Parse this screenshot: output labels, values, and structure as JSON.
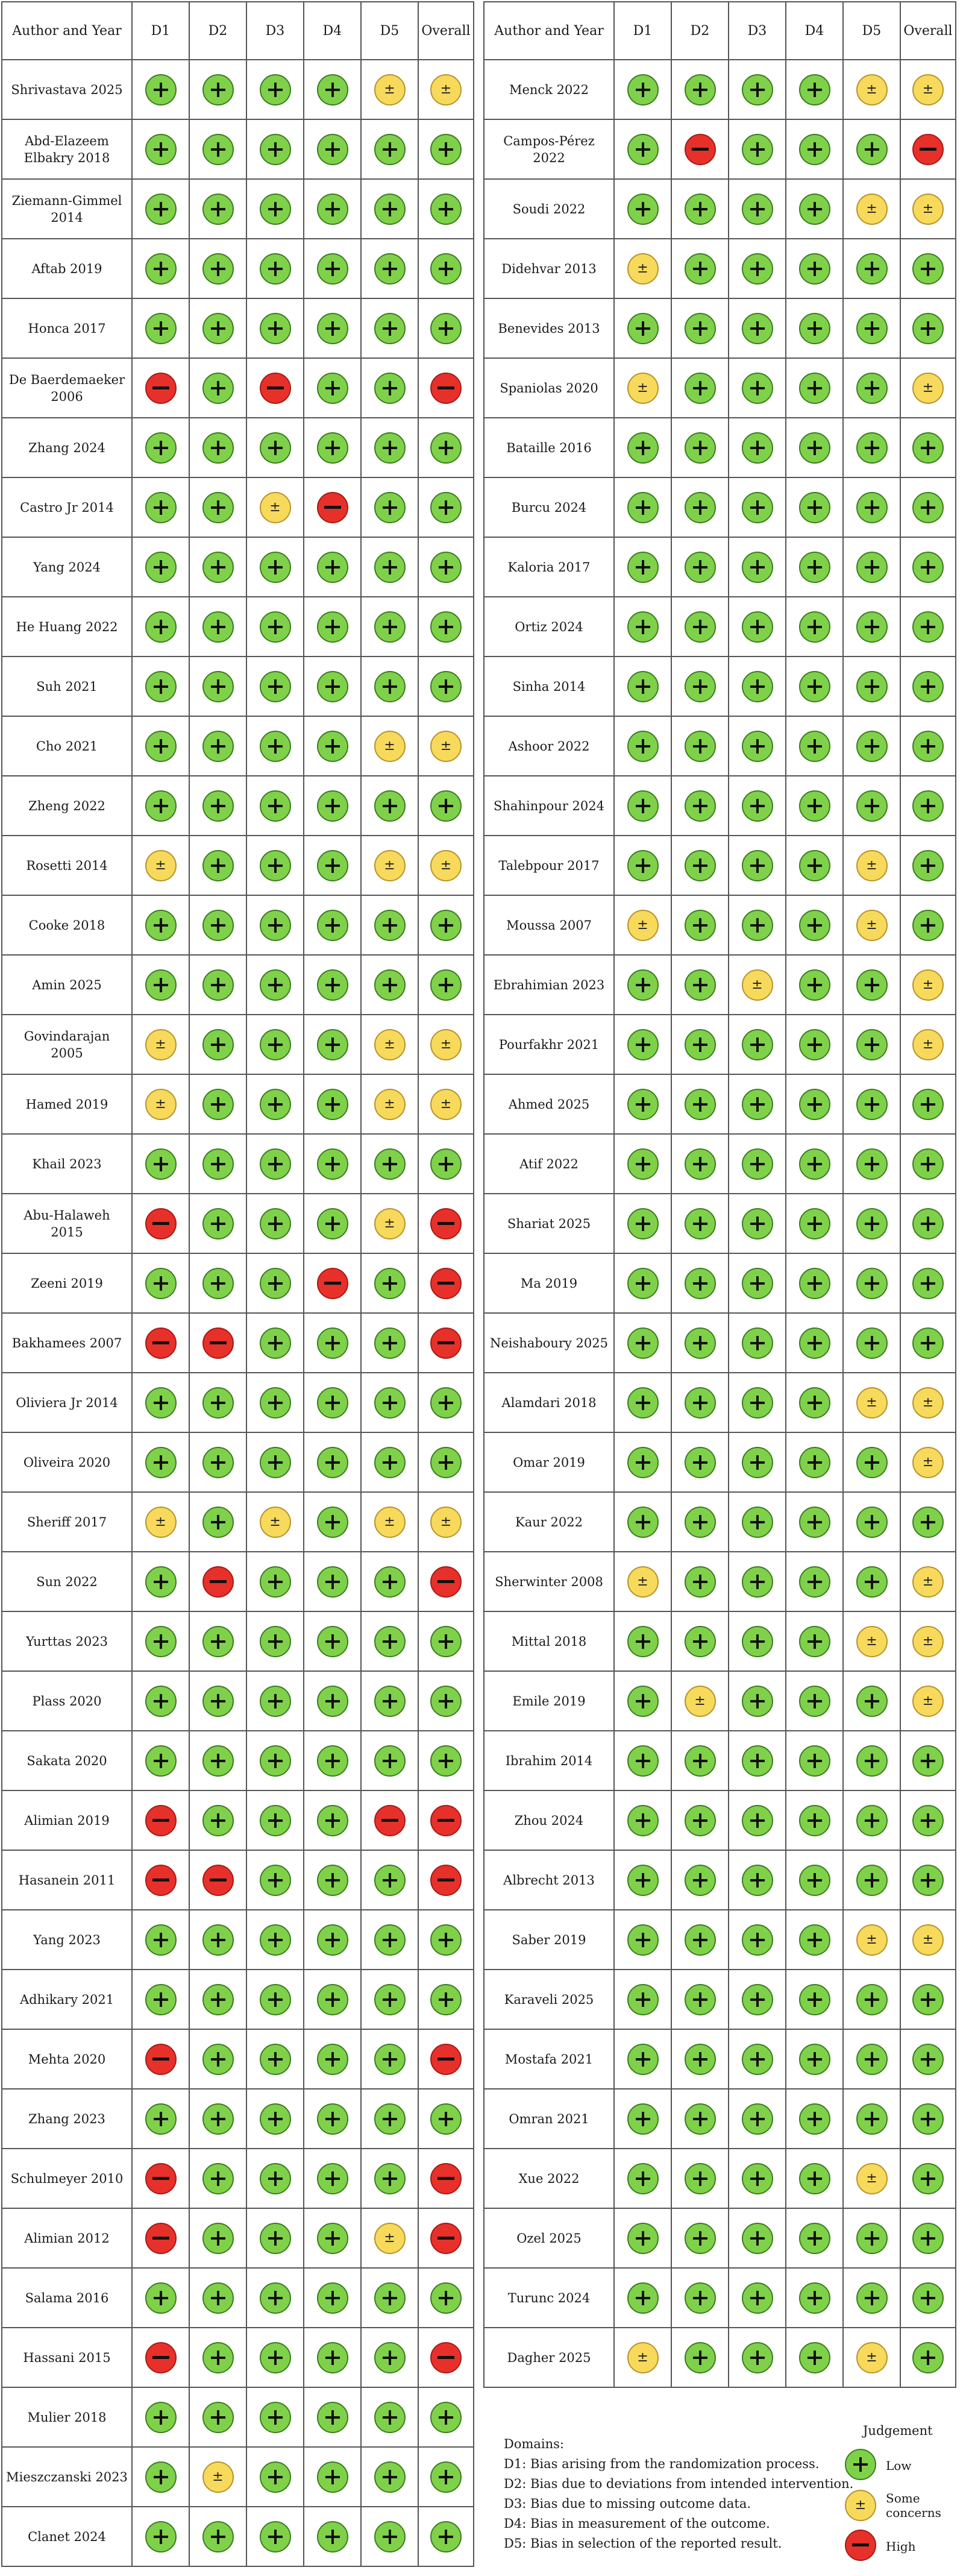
{
  "columns_header": {
    "name": "Author and Year",
    "d1": "D1",
    "d2": "D2",
    "d3": "D3",
    "d4": "D4",
    "d5": "D5",
    "overall": "Overall"
  },
  "left_table": [
    {
      "name": "Shrivastava 2025",
      "j": [
        "low",
        "low",
        "low",
        "low",
        "some",
        "some"
      ]
    },
    {
      "name": "Abd-Elazeem Elbakry 2018",
      "j": [
        "low",
        "low",
        "low",
        "low",
        "low",
        "low"
      ]
    },
    {
      "name": "Ziemann-Gimmel 2014",
      "j": [
        "low",
        "low",
        "low",
        "low",
        "low",
        "low"
      ]
    },
    {
      "name": "Aftab 2019",
      "j": [
        "low",
        "low",
        "low",
        "low",
        "low",
        "low"
      ]
    },
    {
      "name": "Honca 2017",
      "j": [
        "low",
        "low",
        "low",
        "low",
        "low",
        "low"
      ]
    },
    {
      "name": "De Baerdemaeker 2006",
      "j": [
        "high",
        "low",
        "high",
        "low",
        "low",
        "high"
      ]
    },
    {
      "name": "Zhang 2024",
      "j": [
        "low",
        "low",
        "low",
        "low",
        "low",
        "low"
      ]
    },
    {
      "name": "Castro Jr 2014",
      "j": [
        "low",
        "low",
        "some",
        "high",
        "low",
        "low"
      ]
    },
    {
      "name": "Yang 2024",
      "j": [
        "low",
        "low",
        "low",
        "low",
        "low",
        "low"
      ]
    },
    {
      "name": "He Huang 2022",
      "j": [
        "low",
        "low",
        "low",
        "low",
        "low",
        "low"
      ]
    },
    {
      "name": "Suh 2021",
      "j": [
        "low",
        "low",
        "low",
        "low",
        "low",
        "low"
      ]
    },
    {
      "name": "Cho 2021",
      "j": [
        "low",
        "low",
        "low",
        "low",
        "some",
        "some"
      ]
    },
    {
      "name": "Zheng 2022",
      "j": [
        "low",
        "low",
        "low",
        "low",
        "low",
        "low"
      ]
    },
    {
      "name": "Rosetti 2014",
      "j": [
        "some",
        "low",
        "low",
        "low",
        "some",
        "some"
      ]
    },
    {
      "name": "Cooke 2018",
      "j": [
        "low",
        "low",
        "low",
        "low",
        "low",
        "low"
      ]
    },
    {
      "name": "Amin 2025",
      "j": [
        "low",
        "low",
        "low",
        "low",
        "low",
        "low"
      ]
    },
    {
      "name": "Govindarajan 2005",
      "j": [
        "some",
        "low",
        "low",
        "low",
        "some",
        "some"
      ]
    },
    {
      "name": "Hamed 2019",
      "j": [
        "some",
        "low",
        "low",
        "low",
        "some",
        "some"
      ]
    },
    {
      "name": "Khail 2023",
      "j": [
        "low",
        "low",
        "low",
        "low",
        "low",
        "low"
      ]
    },
    {
      "name": "Abu-Halaweh 2015",
      "j": [
        "high",
        "low",
        "low",
        "low",
        "some",
        "high"
      ]
    },
    {
      "name": "Zeeni 2019",
      "j": [
        "low",
        "low",
        "low",
        "high",
        "low",
        "high"
      ]
    },
    {
      "name": "Bakhamees 2007",
      "j": [
        "high",
        "high",
        "low",
        "low",
        "low",
        "high"
      ]
    },
    {
      "name": "Oliviera Jr 2014",
      "j": [
        "low",
        "low",
        "low",
        "low",
        "low",
        "low"
      ]
    },
    {
      "name": "Oliveira 2020",
      "j": [
        "low",
        "low",
        "low",
        "low",
        "low",
        "low"
      ]
    },
    {
      "name": "Sheriff 2017",
      "j": [
        "some",
        "low",
        "some",
        "low",
        "some",
        "some"
      ]
    },
    {
      "name": "Sun 2022",
      "j": [
        "low",
        "high",
        "low",
        "low",
        "low",
        "high"
      ]
    },
    {
      "name": "Yurttas 2023",
      "j": [
        "low",
        "low",
        "low",
        "low",
        "low",
        "low"
      ]
    },
    {
      "name": "Plass 2020",
      "j": [
        "low",
        "low",
        "low",
        "low",
        "low",
        "low"
      ]
    },
    {
      "name": "Sakata 2020",
      "j": [
        "low",
        "low",
        "low",
        "low",
        "low",
        "low"
      ]
    },
    {
      "name": "Alimian 2019",
      "j": [
        "high",
        "low",
        "low",
        "low",
        "high",
        "high"
      ]
    },
    {
      "name": "Hasanein 2011",
      "j": [
        "high",
        "high",
        "low",
        "low",
        "low",
        "high"
      ]
    },
    {
      "name": "Yang 2023",
      "j": [
        "low",
        "low",
        "low",
        "low",
        "low",
        "low"
      ]
    },
    {
      "name": "Adhikary 2021",
      "j": [
        "low",
        "low",
        "low",
        "low",
        "low",
        "low"
      ]
    },
    {
      "name": "Mehta 2020",
      "j": [
        "high",
        "low",
        "low",
        "low",
        "low",
        "high"
      ]
    },
    {
      "name": "Zhang 2023",
      "j": [
        "low",
        "low",
        "low",
        "low",
        "low",
        "low"
      ]
    },
    {
      "name": "Schulmeyer 2010",
      "j": [
        "high",
        "low",
        "low",
        "low",
        "low",
        "high"
      ]
    },
    {
      "name": "Alimian 2012",
      "j": [
        "high",
        "low",
        "low",
        "low",
        "some",
        "high"
      ]
    },
    {
      "name": "Salama 2016",
      "j": [
        "low",
        "low",
        "low",
        "low",
        "low",
        "low"
      ]
    },
    {
      "name": "Hassani 2015",
      "j": [
        "high",
        "low",
        "low",
        "low",
        "low",
        "high"
      ]
    },
    {
      "name": "Mulier 2018",
      "j": [
        "low",
        "low",
        "low",
        "low",
        "low",
        "low"
      ]
    },
    {
      "name": "Mieszczanski 2023",
      "j": [
        "low",
        "some",
        "low",
        "low",
        "low",
        "low"
      ]
    },
    {
      "name": "Clanet 2024",
      "j": [
        "low",
        "low",
        "low",
        "low",
        "low",
        "low"
      ]
    }
  ],
  "right_table": [
    {
      "name": "Menck 2022",
      "j": [
        "low",
        "low",
        "low",
        "low",
        "some",
        "some"
      ]
    },
    {
      "name": "Campos-Pérez 2022",
      "j": [
        "low",
        "high",
        "low",
        "low",
        "low",
        "high"
      ]
    },
    {
      "name": "Soudi 2022",
      "j": [
        "low",
        "low",
        "low",
        "low",
        "some",
        "some"
      ]
    },
    {
      "name": "Didehvar 2013",
      "j": [
        "some",
        "low",
        "low",
        "low",
        "low",
        "low"
      ]
    },
    {
      "name": "Benevides 2013",
      "j": [
        "low",
        "low",
        "low",
        "low",
        "low",
        "low"
      ]
    },
    {
      "name": "Spaniolas 2020",
      "j": [
        "some",
        "low",
        "low",
        "low",
        "low",
        "some"
      ]
    },
    {
      "name": "Bataille 2016",
      "j": [
        "low",
        "low",
        "low",
        "low",
        "low",
        "low"
      ]
    },
    {
      "name": "Burcu 2024",
      "j": [
        "low",
        "low",
        "low",
        "low",
        "low",
        "low"
      ]
    },
    {
      "name": "Kaloria 2017",
      "j": [
        "low",
        "low",
        "low",
        "low",
        "low",
        "low"
      ]
    },
    {
      "name": "Ortiz 2024",
      "j": [
        "low",
        "low",
        "low",
        "low",
        "low",
        "low"
      ]
    },
    {
      "name": "Sinha 2014",
      "j": [
        "low",
        "low",
        "low",
        "low",
        "low",
        "low"
      ]
    },
    {
      "name": "Ashoor 2022",
      "j": [
        "low",
        "low",
        "low",
        "low",
        "low",
        "low"
      ]
    },
    {
      "name": "Shahinpour 2024",
      "j": [
        "low",
        "low",
        "low",
        "low",
        "low",
        "low"
      ]
    },
    {
      "name": "Talebpour 2017",
      "j": [
        "low",
        "low",
        "low",
        "low",
        "some",
        "low"
      ]
    },
    {
      "name": "Moussa 2007",
      "j": [
        "some",
        "low",
        "low",
        "low",
        "some",
        "low"
      ]
    },
    {
      "name": "Ebrahimian 2023",
      "j": [
        "low",
        "low",
        "some",
        "low",
        "low",
        "some"
      ]
    },
    {
      "name": "Pourfakhr 2021",
      "j": [
        "low",
        "low",
        "low",
        "low",
        "low",
        "some"
      ]
    },
    {
      "name": "Ahmed 2025",
      "j": [
        "low",
        "low",
        "low",
        "low",
        "low",
        "low"
      ]
    },
    {
      "name": "Atif 2022",
      "j": [
        "low",
        "low",
        "low",
        "low",
        "low",
        "low"
      ]
    },
    {
      "name": "Shariat 2025",
      "j": [
        "low",
        "low",
        "low",
        "low",
        "low",
        "low"
      ]
    },
    {
      "name": "Ma 2019",
      "j": [
        "low",
        "low",
        "low",
        "low",
        "low",
        "low"
      ]
    },
    {
      "name": "Neishaboury 2025",
      "j": [
        "low",
        "low",
        "low",
        "low",
        "low",
        "low"
      ]
    },
    {
      "name": "Alamdari 2018",
      "j": [
        "low",
        "low",
        "low",
        "low",
        "some",
        "some"
      ]
    },
    {
      "name": "Omar 2019",
      "j": [
        "low",
        "low",
        "low",
        "low",
        "low",
        "some"
      ]
    },
    {
      "name": "Kaur 2022",
      "j": [
        "low",
        "low",
        "low",
        "low",
        "low",
        "low"
      ]
    },
    {
      "name": "Sherwinter  2008",
      "j": [
        "some",
        "low",
        "low",
        "low",
        "low",
        "some"
      ]
    },
    {
      "name": "Mittal 2018",
      "j": [
        "low",
        "low",
        "low",
        "low",
        "some",
        "some"
      ]
    },
    {
      "name": "Emile 2019",
      "j": [
        "low",
        "some",
        "low",
        "low",
        "low",
        "some"
      ]
    },
    {
      "name": "Ibrahim 2014",
      "j": [
        "low",
        "low",
        "low",
        "low",
        "low",
        "low"
      ]
    },
    {
      "name": "Zhou 2024",
      "j": [
        "low",
        "low",
        "low",
        "low",
        "low",
        "low"
      ]
    },
    {
      "name": "Albrecht 2013",
      "j": [
        "low",
        "low",
        "low",
        "low",
        "low",
        "low"
      ]
    },
    {
      "name": "Saber 2019",
      "j": [
        "low",
        "low",
        "low",
        "low",
        "some",
        "some"
      ]
    },
    {
      "name": "Karaveli 2025",
      "j": [
        "low",
        "low",
        "low",
        "low",
        "low",
        "low"
      ]
    },
    {
      "name": "Mostafa 2021",
      "j": [
        "low",
        "low",
        "low",
        "low",
        "low",
        "low"
      ]
    },
    {
      "name": "Omran 2021",
      "j": [
        "low",
        "low",
        "low",
        "low",
        "low",
        "low"
      ]
    },
    {
      "name": "Xue 2022",
      "j": [
        "low",
        "low",
        "low",
        "low",
        "some",
        "low"
      ]
    },
    {
      "name": "Ozel 2025",
      "j": [
        "low",
        "low",
        "low",
        "low",
        "low",
        "low"
      ]
    },
    {
      "name": "Turunc 2024",
      "j": [
        "low",
        "low",
        "low",
        "low",
        "low",
        "low"
      ]
    },
    {
      "name": "Dagher 2025",
      "j": [
        "some",
        "low",
        "low",
        "low",
        "some",
        "low"
      ]
    }
  ],
  "legend": {
    "domains_title": "Domains:",
    "domains": [
      "D1: Bias arising from the randomization process.",
      "D2: Bias due to deviations from intended intervention.",
      "D3: Bias due to missing outcome data.",
      "D4: Bias in measurement of the outcome.",
      "D5: Bias in selection of the reported result."
    ],
    "judgement_title": "Judgement",
    "judgement_items": [
      {
        "level": "low",
        "label": "Low"
      },
      {
        "level": "some",
        "label": "Some concerns"
      },
      {
        "level": "high",
        "label": "High"
      }
    ]
  },
  "colors": {
    "low": "#7fd14a",
    "some": "#f7d95c",
    "high": "#e8302a"
  },
  "icons": {
    "low": "plus-icon",
    "some": "plus-minus-icon",
    "high": "minus-icon"
  }
}
